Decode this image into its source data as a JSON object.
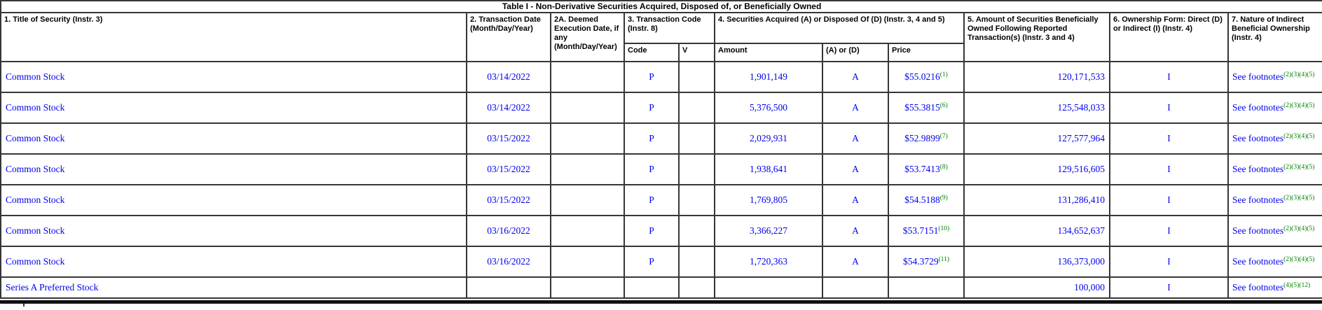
{
  "table_title": "Table I - Non-Derivative Securities Acquired, Disposed of, or Beneficially Owned",
  "headers": {
    "col1": "1. Title of Security (Instr. 3)",
    "col2": "2. Transaction Date (Month/Day/Year)",
    "col2a": "2A. Deemed Execution Date, if any (Month/Day/Year)",
    "col3": "3. Transaction Code (Instr. 8)",
    "col4": "4. Securities Acquired (A) or Disposed Of (D) (Instr. 3, 4 and 5)",
    "col5": "5. Amount of Securities Beneficially Owned Following Reported Transaction(s) (Instr. 3 and 4)",
    "col6": "6. Ownership Form: Direct (D) or Indirect (I) (Instr. 4)",
    "col7": "7. Nature of Indirect Beneficial Ownership (Instr. 4)",
    "sub_code": "Code",
    "sub_v": "V",
    "sub_amount": "Amount",
    "sub_aord": "(A) or (D)",
    "sub_price": "Price"
  },
  "colors": {
    "data_link_blue": "#0000EE",
    "footnote_green": "#008000",
    "header_text": "#000000",
    "grid_border": "#363636"
  },
  "rows": [
    {
      "security": "Common Stock",
      "date": "03/14/2022",
      "deemed": "",
      "code": "P",
      "v": "",
      "amount": "1,901,149",
      "acq_disp": "A",
      "price": "$55.0216",
      "price_fn": "(1)",
      "owned": "120,171,533",
      "form": "I",
      "footnote": "See footnotes",
      "footnote_refs": [
        "(2)",
        "(3)",
        "(4)",
        "(5)"
      ]
    },
    {
      "security": "Common Stock",
      "date": "03/14/2022",
      "deemed": "",
      "code": "P",
      "v": "",
      "amount": "5,376,500",
      "acq_disp": "A",
      "price": "$55.3815",
      "price_fn": "(6)",
      "owned": "125,548,033",
      "form": "I",
      "footnote": "See footnotes",
      "footnote_refs": [
        "(2)",
        "(3)",
        "(4)",
        "(5)"
      ]
    },
    {
      "security": "Common Stock",
      "date": "03/15/2022",
      "deemed": "",
      "code": "P",
      "v": "",
      "amount": "2,029,931",
      "acq_disp": "A",
      "price": "$52.9899",
      "price_fn": "(7)",
      "owned": "127,577,964",
      "form": "I",
      "footnote": "See footnotes",
      "footnote_refs": [
        "(2)",
        "(3)",
        "(4)",
        "(5)"
      ]
    },
    {
      "security": "Common Stock",
      "date": "03/15/2022",
      "deemed": "",
      "code": "P",
      "v": "",
      "amount": "1,938,641",
      "acq_disp": "A",
      "price": "$53.7413",
      "price_fn": "(8)",
      "owned": "129,516,605",
      "form": "I",
      "footnote": "See footnotes",
      "footnote_refs": [
        "(2)",
        "(3)",
        "(4)",
        "(5)"
      ]
    },
    {
      "security": "Common Stock",
      "date": "03/15/2022",
      "deemed": "",
      "code": "P",
      "v": "",
      "amount": "1,769,805",
      "acq_disp": "A",
      "price": "$54.5188",
      "price_fn": "(9)",
      "owned": "131,286,410",
      "form": "I",
      "footnote": "See footnotes",
      "footnote_refs": [
        "(2)",
        "(3)",
        "(4)",
        "(5)"
      ]
    },
    {
      "security": "Common Stock",
      "date": "03/16/2022",
      "deemed": "",
      "code": "P",
      "v": "",
      "amount": "3,366,227",
      "acq_disp": "A",
      "price": "$53.7151",
      "price_fn": "(10)",
      "owned": "134,652,637",
      "form": "I",
      "footnote": "See footnotes",
      "footnote_refs": [
        "(2)",
        "(3)",
        "(4)",
        "(5)"
      ]
    },
    {
      "security": "Common Stock",
      "date": "03/16/2022",
      "deemed": "",
      "code": "P",
      "v": "",
      "amount": "1,720,363",
      "acq_disp": "A",
      "price": "$54.3729",
      "price_fn": "(11)",
      "owned": "136,373,000",
      "form": "I",
      "footnote": "See footnotes",
      "footnote_refs": [
        "(2)",
        "(3)",
        "(4)",
        "(5)"
      ]
    },
    {
      "security": "Series A Preferred Stock",
      "date": "",
      "deemed": "",
      "code": "",
      "v": "",
      "amount": "",
      "acq_disp": "",
      "price": "",
      "price_fn": "",
      "owned": "100,000",
      "form": "I",
      "footnote": "See footnotes",
      "footnote_refs": [
        "(4)",
        "(5)",
        "(12)"
      ]
    }
  ]
}
